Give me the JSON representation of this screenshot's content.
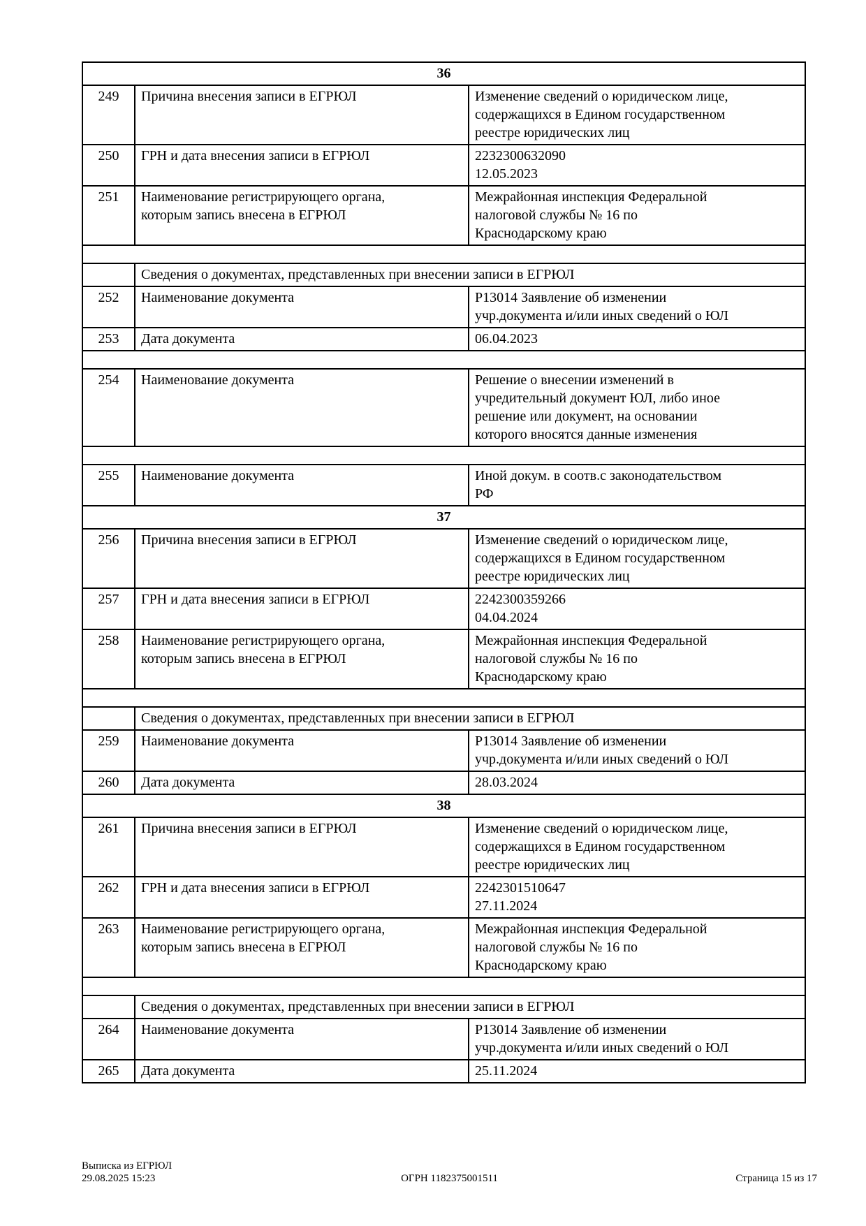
{
  "table": {
    "rows": [
      {
        "type": "section",
        "title": "36"
      },
      {
        "type": "field",
        "num": "249",
        "label": [
          "Причина внесения записи в ЕГРЮЛ"
        ],
        "value": [
          "Изменение сведений о юридическом лице,",
          "содержащихся в Едином государственном",
          "реестре юридических лиц"
        ]
      },
      {
        "type": "field",
        "num": "250",
        "label": [
          "ГРН и дата внесения записи в ЕГРЮЛ"
        ],
        "value": [
          "2232300632090",
          "12.05.2023"
        ]
      },
      {
        "type": "field",
        "num": "251",
        "label": [
          "Наименование регистрирующего органа,",
          "которым запись внесена в ЕГРЮЛ"
        ],
        "value": [
          "Межрайонная инспекция Федеральной",
          "налоговой службы № 16 по",
          "Краснодарскому краю"
        ]
      },
      {
        "type": "spacer"
      },
      {
        "type": "subheader",
        "text": "Сведения о документах, представленных при внесении записи в ЕГРЮЛ"
      },
      {
        "type": "field",
        "num": "252",
        "label": [
          "Наименование документа"
        ],
        "value": [
          "Р13014 Заявление об изменении",
          "учр.документа и/или иных сведений о ЮЛ"
        ]
      },
      {
        "type": "field",
        "num": "253",
        "label": [
          "Дата документа"
        ],
        "value": [
          "06.04.2023"
        ]
      },
      {
        "type": "spacer"
      },
      {
        "type": "field",
        "num": "254",
        "label": [
          "Наименование документа"
        ],
        "value": [
          "Решение о внесении изменений в",
          "учредительный документ ЮЛ, либо иное",
          "решение или документ, на основании",
          "которого вносятся данные изменения"
        ]
      },
      {
        "type": "spacer"
      },
      {
        "type": "field",
        "num": "255",
        "label": [
          "Наименование документа"
        ],
        "value": [
          "Иной докум. в соотв.с законодательством",
          "РФ"
        ]
      },
      {
        "type": "section",
        "title": "37"
      },
      {
        "type": "field",
        "num": "256",
        "label": [
          "Причина внесения записи в ЕГРЮЛ"
        ],
        "value": [
          "Изменение сведений о юридическом лице,",
          "содержащихся в Едином государственном",
          "реестре юридических лиц"
        ]
      },
      {
        "type": "field",
        "num": "257",
        "label": [
          "ГРН и дата внесения записи в ЕГРЮЛ"
        ],
        "value": [
          "2242300359266",
          "04.04.2024"
        ]
      },
      {
        "type": "field",
        "num": "258",
        "label": [
          "Наименование регистрирующего органа,",
          "которым запись внесена в ЕГРЮЛ"
        ],
        "value": [
          "Межрайонная инспекция Федеральной",
          "налоговой службы № 16 по",
          "Краснодарскому краю"
        ]
      },
      {
        "type": "spacer"
      },
      {
        "type": "subheader",
        "text": "Сведения о документах, представленных при внесении записи в ЕГРЮЛ"
      },
      {
        "type": "field",
        "num": "259",
        "label": [
          "Наименование документа"
        ],
        "value": [
          "Р13014 Заявление об изменении",
          "учр.документа и/или иных сведений о ЮЛ"
        ]
      },
      {
        "type": "field",
        "num": "260",
        "label": [
          "Дата документа"
        ],
        "value": [
          "28.03.2024"
        ]
      },
      {
        "type": "section",
        "title": "38"
      },
      {
        "type": "field",
        "num": "261",
        "label": [
          "Причина внесения записи в ЕГРЮЛ"
        ],
        "value": [
          "Изменение сведений о юридическом лице,",
          "содержащихся в Едином государственном",
          "реестре юридических лиц"
        ]
      },
      {
        "type": "field",
        "num": "262",
        "label": [
          "ГРН и дата внесения записи в ЕГРЮЛ"
        ],
        "value": [
          "2242301510647",
          "27.11.2024"
        ]
      },
      {
        "type": "field",
        "num": "263",
        "label": [
          "Наименование регистрирующего органа,",
          "которым запись внесена в ЕГРЮЛ"
        ],
        "value": [
          "Межрайонная инспекция Федеральной",
          "налоговой службы № 16 по",
          "Краснодарскому краю"
        ]
      },
      {
        "type": "spacer"
      },
      {
        "type": "subheader",
        "text": "Сведения о документах, представленных при внесении записи в ЕГРЮЛ"
      },
      {
        "type": "field",
        "num": "264",
        "label": [
          "Наименование документа"
        ],
        "value": [
          "Р13014 Заявление об изменении",
          "учр.документа и/или иных сведений о ЮЛ"
        ]
      },
      {
        "type": "field",
        "num": "265",
        "label": [
          "Дата документа"
        ],
        "value": [
          "25.11.2024"
        ]
      }
    ]
  },
  "footer": {
    "title": "Выписка из ЕГРЮЛ",
    "datetime": "29.08.2025 15:23",
    "ogrn": "ОГРН 1182375001511",
    "page": "Страница 15 из 17"
  }
}
